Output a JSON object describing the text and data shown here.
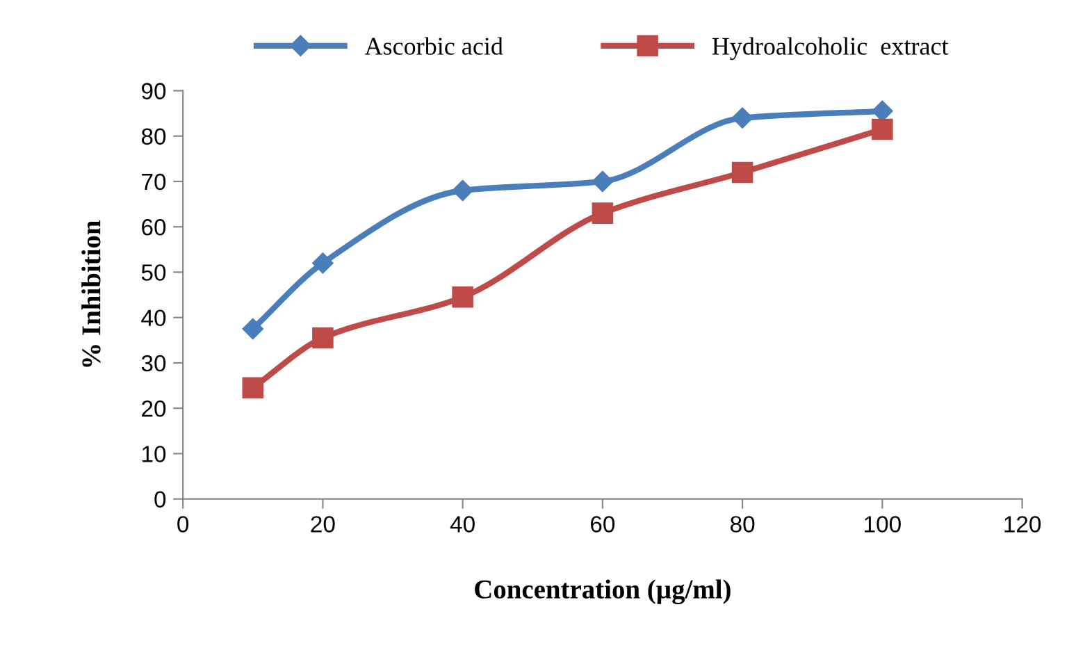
{
  "chart_data": {
    "type": "line",
    "xlabel": "Concentration (µg/ml)",
    "ylabel": "% Inhibition",
    "x": [
      10,
      20,
      40,
      60,
      80,
      100
    ],
    "series": [
      {
        "name": "Ascorbic acid",
        "color": "#4a7ebb",
        "marker": "diamond",
        "values": [
          37.5,
          52,
          68,
          70,
          84,
          85.5
        ]
      },
      {
        "name": "Hydroalcoholic  extract",
        "color": "#be4b48",
        "marker": "square",
        "values": [
          24.5,
          35.5,
          44.5,
          63,
          72,
          81.5
        ]
      }
    ],
    "xlim": [
      0,
      120
    ],
    "xticks": [
      0,
      20,
      40,
      60,
      80,
      100,
      120
    ],
    "ylim": [
      0,
      90
    ],
    "yticks": [
      0,
      10,
      20,
      30,
      40,
      50,
      60,
      70,
      80,
      90
    ],
    "grid": false,
    "legend": "top"
  }
}
